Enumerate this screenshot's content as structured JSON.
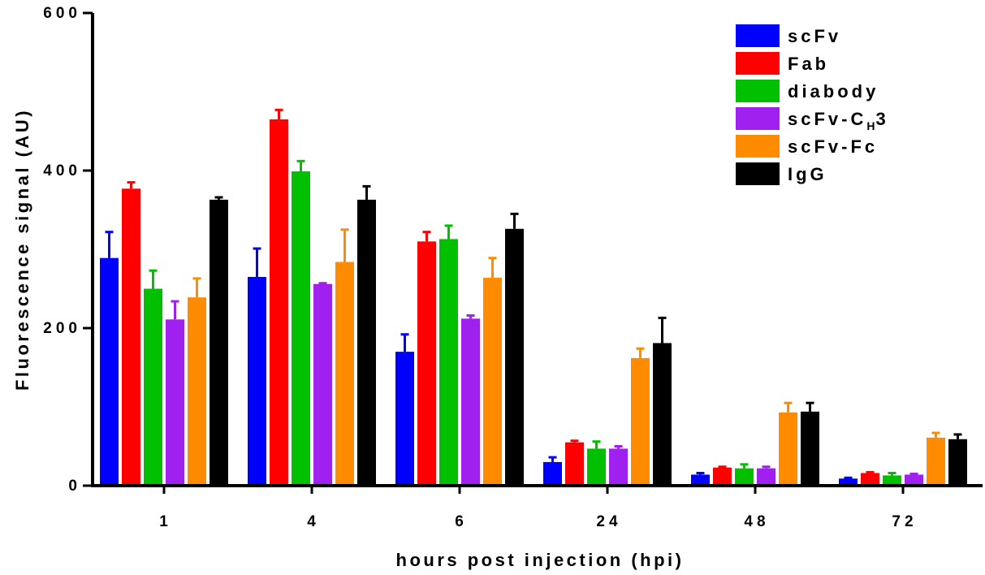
{
  "chart_data": {
    "type": "bar",
    "xlabel": "hours post injection (hpi)",
    "ylabel": "Fluorescence signal (AU)",
    "ylim": [
      0,
      600
    ],
    "yticks": [
      0,
      200,
      400,
      600
    ],
    "categories": [
      "1",
      "4",
      "6",
      "24",
      "48",
      "72"
    ],
    "legend_position": "top-right",
    "error_bars": "upper",
    "series": [
      {
        "name": "scFv",
        "color": "#0000ff",
        "values": [
          289,
          265,
          170,
          30,
          14,
          9
        ],
        "errors": [
          33,
          36,
          22,
          6,
          2,
          1
        ]
      },
      {
        "name": "Fab",
        "color": "#ff0000",
        "values": [
          377,
          465,
          310,
          55,
          23,
          16
        ],
        "errors": [
          8,
          12,
          12,
          2,
          1,
          1
        ]
      },
      {
        "name": "diabody",
        "color": "#00c000",
        "values": [
          250,
          399,
          313,
          47,
          22,
          13
        ],
        "errors": [
          23,
          13,
          17,
          9,
          5,
          3
        ]
      },
      {
        "name": "scFv-C",
        "name_sub": "H",
        "name_suffix": "3",
        "color": "#a020f0",
        "values": [
          211,
          256,
          212,
          47,
          22,
          14
        ],
        "errors": [
          23,
          1,
          4,
          3,
          2,
          1
        ]
      },
      {
        "name": "scFv-Fc",
        "color": "#ff8c00",
        "values": [
          239,
          284,
          264,
          162,
          93,
          61
        ],
        "errors": [
          24,
          41,
          25,
          12,
          12,
          6
        ]
      },
      {
        "name": "IgG",
        "color": "#000000",
        "values": [
          363,
          363,
          326,
          181,
          94,
          59
        ],
        "errors": [
          3,
          17,
          19,
          32,
          11,
          6
        ]
      }
    ]
  }
}
